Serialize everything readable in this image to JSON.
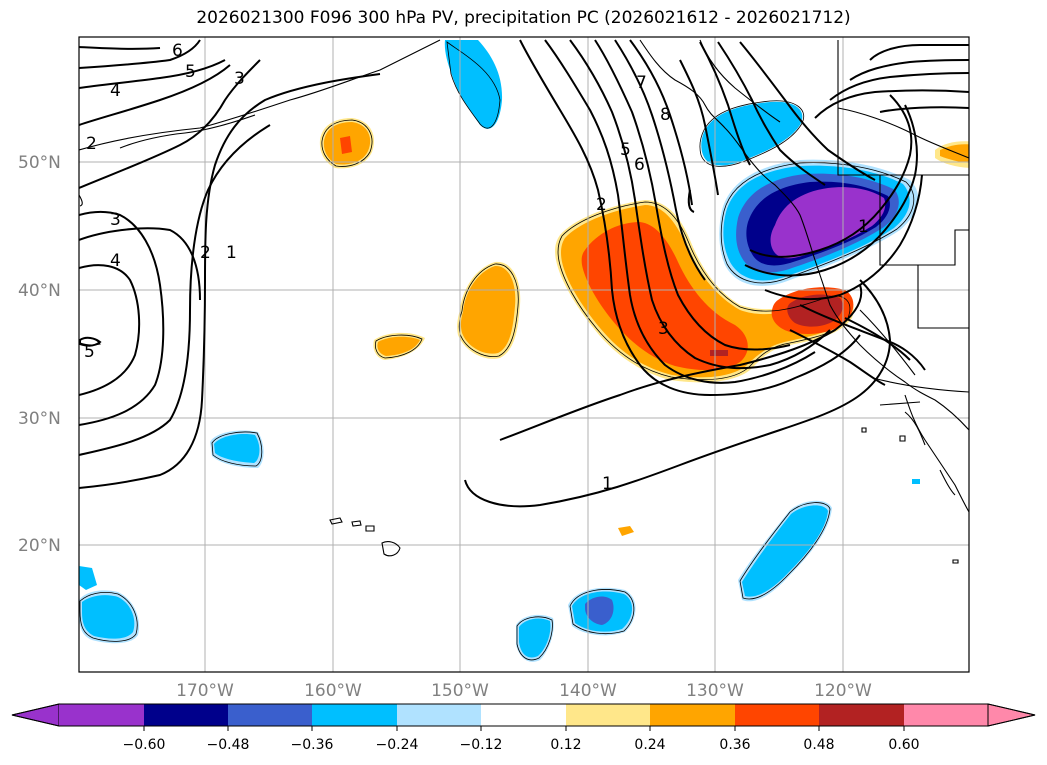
{
  "title": "2026021300 F096 300 hPa PV, precipitation PC (2026021612 - 2026021712)",
  "lat_labels": [
    "50°N",
    "40°N",
    "30°N",
    "20°N"
  ],
  "lon_labels": [
    "170°W",
    "160°W",
    "150°W",
    "140°W",
    "130°W",
    "120°W"
  ],
  "contour_labels": [
    "6",
    "5",
    "4",
    "3",
    "2",
    "1",
    "3",
    "4",
    "5",
    "2",
    "1",
    "2",
    "3",
    "5",
    "6",
    "7",
    "8",
    "1"
  ],
  "colorbar": {
    "ticks": [
      "−0.60",
      "−0.48",
      "−0.36",
      "−0.24",
      "−0.12",
      "0.12",
      "0.24",
      "0.36",
      "0.48",
      "0.60"
    ],
    "colors": [
      "#9932cc",
      "#00008b",
      "#3a5fcd",
      "#00bfff",
      "#b0e2ff",
      "#ffffff",
      "#ffe78a",
      "#ffa500",
      "#ff4500",
      "#b22222",
      "#ff88aa"
    ]
  },
  "palette": {
    "purple": "#9932cc",
    "navy": "#00008b",
    "blue": "#3a5fcd",
    "cyan": "#00bfff",
    "lightblue": "#b0e2ff",
    "lightyellow": "#ffe78a",
    "orange": "#ffa500",
    "orangered": "#ff4500",
    "darkred": "#b22222"
  }
}
